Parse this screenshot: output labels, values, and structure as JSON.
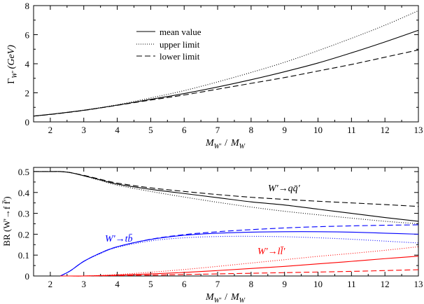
{
  "chart_data": [
    {
      "type": "line",
      "title": "",
      "xlabel_main": "M",
      "xlabel_sub": "W'",
      "xlabel_sep": "/",
      "xlabel_main2": "M",
      "xlabel_sub2": "W",
      "ylabel_main": "Γ",
      "ylabel_sub": "W'",
      "ylabel_unit": "(GeV)",
      "xlim": [
        1.5,
        13
      ],
      "ylim": [
        0,
        8
      ],
      "xticks": [
        2,
        3,
        4,
        5,
        6,
        7,
        8,
        9,
        10,
        11,
        12,
        13
      ],
      "yticks": [
        0,
        2,
        4,
        6,
        8
      ],
      "legend": {
        "position": "top-center",
        "entries": [
          {
            "label": "mean value",
            "style": "solid"
          },
          {
            "label": "upper limit",
            "style": "dotted"
          },
          {
            "label": "lower limit",
            "style": "dashed"
          }
        ]
      },
      "x": [
        1.5,
        2,
        3,
        4,
        5,
        6,
        7,
        8,
        9,
        10,
        11,
        12,
        13
      ],
      "series": [
        {
          "name": "mean value",
          "style": "solid",
          "color": "#000000",
          "values": [
            0.4,
            0.52,
            0.8,
            1.15,
            1.55,
            1.95,
            2.4,
            2.9,
            3.45,
            4.05,
            4.75,
            5.5,
            6.3
          ]
        },
        {
          "name": "upper limit",
          "style": "dotted",
          "color": "#000000",
          "values": [
            0.4,
            0.52,
            0.81,
            1.18,
            1.65,
            2.15,
            2.75,
            3.4,
            4.1,
            4.9,
            5.75,
            6.65,
            7.65
          ]
        },
        {
          "name": "lower limit",
          "style": "dashed",
          "color": "#000000",
          "values": [
            0.4,
            0.51,
            0.79,
            1.14,
            1.5,
            1.85,
            2.25,
            2.65,
            3.05,
            3.5,
            3.95,
            4.45,
            4.95
          ]
        }
      ]
    },
    {
      "type": "line",
      "title": "",
      "xlabel_main": "M",
      "xlabel_sub": "W'",
      "xlabel_sep": "/",
      "xlabel_main2": "M",
      "xlabel_sub2": "W",
      "ylabel": "BR (W'→f f̄')",
      "xlim": [
        1.5,
        13
      ],
      "ylim": [
        0,
        0.52
      ],
      "xticks": [
        2,
        3,
        4,
        5,
        6,
        7,
        8,
        9,
        10,
        11,
        12,
        13
      ],
      "yticks": [
        0,
        0.1,
        0.2,
        0.3,
        0.4,
        0.5
      ],
      "ytick_labels": [
        "0",
        "0.1",
        "0.2",
        "0.3",
        "0.4",
        "0.5"
      ],
      "annotations": [
        {
          "text": "W'→qq̄'",
          "color": "#000000",
          "x": 10.0,
          "y": 0.38
        },
        {
          "text": "W'→tb̄",
          "color": "#0000ff",
          "x": 3.6,
          "y": 0.2
        },
        {
          "text": "W'→ll̄'",
          "color": "#ff0000",
          "x": 9.2,
          "y": 0.08
        }
      ],
      "x": [
        1.5,
        2,
        2.3,
        2.6,
        3,
        3.5,
        4,
        5,
        6,
        7,
        8,
        9,
        10,
        11,
        12,
        13
      ],
      "series": [
        {
          "name": "qq' mean",
          "color": "#000000",
          "style": "solid",
          "values": [
            0.5,
            0.5,
            0.5,
            0.495,
            0.48,
            0.46,
            0.44,
            0.415,
            0.395,
            0.375,
            0.355,
            0.34,
            0.32,
            0.3,
            0.28,
            0.262
          ]
        },
        {
          "name": "qq' upper",
          "color": "#000000",
          "style": "dashed",
          "values": [
            0.5,
            0.5,
            0.5,
            0.495,
            0.482,
            0.463,
            0.445,
            0.422,
            0.405,
            0.39,
            0.377,
            0.367,
            0.358,
            0.35,
            0.342,
            0.333
          ]
        },
        {
          "name": "qq' lower",
          "color": "#000000",
          "style": "dotted",
          "values": [
            0.5,
            0.5,
            0.5,
            0.495,
            0.48,
            0.457,
            0.435,
            0.405,
            0.378,
            0.353,
            0.33,
            0.31,
            0.293,
            0.277,
            0.262,
            0.25
          ]
        },
        {
          "name": "tb mean",
          "color": "#0000ff",
          "style": "solid",
          "values": [
            null,
            null,
            0.0,
            0.025,
            0.07,
            0.11,
            0.14,
            0.175,
            0.195,
            0.205,
            0.21,
            0.212,
            0.212,
            0.21,
            0.205,
            0.2
          ]
        },
        {
          "name": "tb upper",
          "color": "#0000ff",
          "style": "dashed",
          "values": [
            null,
            null,
            0.0,
            0.025,
            0.07,
            0.11,
            0.14,
            0.176,
            0.198,
            0.212,
            0.222,
            0.23,
            0.236,
            0.24,
            0.243,
            0.245
          ]
        },
        {
          "name": "tb lower",
          "color": "#0000ff",
          "style": "dotted",
          "values": [
            null,
            null,
            0.0,
            0.025,
            0.07,
            0.108,
            0.137,
            0.168,
            0.183,
            0.189,
            0.19,
            0.188,
            0.183,
            0.176,
            0.167,
            0.158
          ]
        },
        {
          "name": "ll mean",
          "color": "#ff0000",
          "style": "solid",
          "values": [
            null,
            null,
            0.0,
            0.0,
            0.0,
            0.002,
            0.004,
            0.01,
            0.017,
            0.026,
            0.036,
            0.046,
            0.058,
            0.07,
            0.083,
            0.095
          ]
        },
        {
          "name": "ll upper",
          "color": "#ff0000",
          "style": "dotted",
          "values": [
            null,
            null,
            0.0,
            0.0,
            0.0,
            0.003,
            0.007,
            0.018,
            0.031,
            0.046,
            0.062,
            0.078,
            0.094,
            0.108,
            0.123,
            0.14
          ]
        },
        {
          "name": "ll lower",
          "color": "#ff0000",
          "style": "dashed",
          "values": [
            null,
            null,
            0.0,
            0.0,
            0.0,
            0.001,
            0.002,
            0.004,
            0.007,
            0.01,
            0.013,
            0.016,
            0.019,
            0.022,
            0.026,
            0.03
          ]
        }
      ]
    }
  ]
}
